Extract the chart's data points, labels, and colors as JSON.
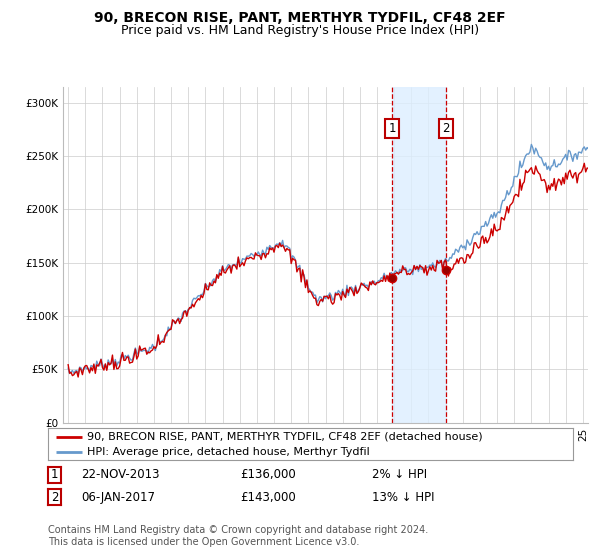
{
  "title": "90, BRECON RISE, PANT, MERTHYR TYDFIL, CF48 2EF",
  "subtitle": "Price paid vs. HM Land Registry's House Price Index (HPI)",
  "ylabel_ticks": [
    "£0",
    "£50K",
    "£100K",
    "£150K",
    "£200K",
    "£250K",
    "£300K"
  ],
  "ytick_values": [
    0,
    50000,
    100000,
    150000,
    200000,
    250000,
    300000
  ],
  "ylim": [
    0,
    315000
  ],
  "xlim_start": 1994.7,
  "xlim_end": 2025.3,
  "bg_color": "#ffffff",
  "plot_bg_color": "#ffffff",
  "grid_color": "#cccccc",
  "hpi_line_color": "#6699cc",
  "price_line_color": "#cc0000",
  "sale1_date": 2013.88,
  "sale1_price": 136000,
  "sale2_date": 2017.02,
  "sale2_price": 143000,
  "shade_color": "#ddeeff",
  "vline_color": "#cc0000",
  "legend_label_price": "90, BRECON RISE, PANT, MERTHYR TYDFIL, CF48 2EF (detached house)",
  "legend_label_hpi": "HPI: Average price, detached house, Merthyr Tydfil",
  "table_row1": [
    "1",
    "22-NOV-2013",
    "£136,000",
    "2% ↓ HPI"
  ],
  "table_row2": [
    "2",
    "06-JAN-2017",
    "£143,000",
    "13% ↓ HPI"
  ],
  "footer": "Contains HM Land Registry data © Crown copyright and database right 2024.\nThis data is licensed under the Open Government Licence v3.0.",
  "title_fontsize": 10,
  "subtitle_fontsize": 9,
  "tick_fontsize": 7.5,
  "legend_fontsize": 8,
  "table_fontsize": 8.5,
  "footer_fontsize": 7
}
